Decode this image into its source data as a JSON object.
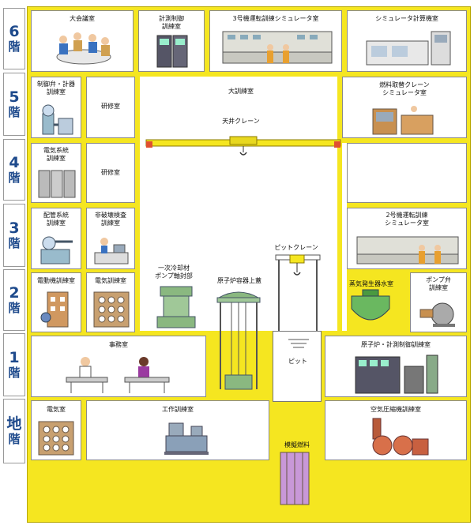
{
  "floors": [
    {
      "num": "6",
      "kai": "階"
    },
    {
      "num": "5",
      "kai": "階"
    },
    {
      "num": "4",
      "kai": "階"
    },
    {
      "num": "3",
      "kai": "階"
    },
    {
      "num": "2",
      "kai": "階"
    },
    {
      "num": "1",
      "kai": "階"
    },
    {
      "num": "地",
      "kai": "階"
    }
  ],
  "rooms": {
    "conference": "大会議室",
    "instrument_control": "計測制御\n訓練室",
    "sim3": "3号機運転訓練シミュレータ室",
    "sim_computer": "シミュレータ計算機室",
    "control_valve": "制御弁・計器\n訓練室",
    "study5": "研修室",
    "main_training": "大訓練室",
    "fuel_crane_sim": "燃料取替クレーン\nシミュレータ室",
    "overhead_crane": "天井クレーン",
    "electrical_system": "電気系統\n訓練室",
    "study4": "研修室",
    "piping": "配管系統\n訓練室",
    "ndt": "非破壊検査\n訓練室",
    "sim2": "2号機運転訓練\nシミュレータ室",
    "pit_crane": "ピットクレーン",
    "primary_pump": "一次冷却材\nポンプ軸封部",
    "reactor_vessel_head": "原子炉容器上蓋",
    "motor": "電動機訓練室",
    "electrical": "電気訓練室",
    "steam_generator": "蒸気発生器水室",
    "pump_valve": "ポンプ弁\n訓練室",
    "office": "事務室",
    "pit": "ピット",
    "reactor_control": "原子炉・計測制御訓練室",
    "electric_room": "電気室",
    "workshop": "工作訓練室",
    "mock_fuel": "模擬燃料",
    "compressor": "空気圧縮機訓練室"
  }
}
